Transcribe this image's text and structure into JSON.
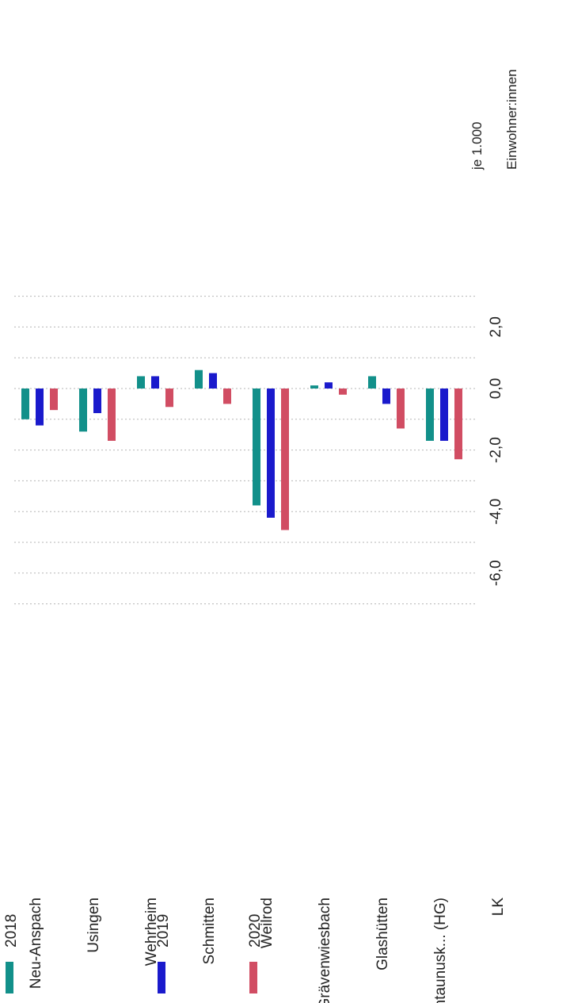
{
  "chart_data": {
    "type": "bar",
    "orientation": "horizontal",
    "categories": [
      "Neu-Anspach",
      "Usingen",
      "Wehrheim",
      "Schmitten",
      "Weilrod",
      "Grävenwiesbach",
      "Glashütten",
      "Hochtaunusk... (HG)",
      "LK"
    ],
    "series": [
      {
        "name": "2018",
        "color": "#12908a",
        "values": [
          -1.0,
          -1.4,
          0.4,
          0.6,
          -3.8,
          0.1,
          0.4,
          -1.7,
          null
        ]
      },
      {
        "name": "2019",
        "color": "#1a1acc",
        "values": [
          -1.2,
          -0.8,
          0.4,
          0.5,
          -4.2,
          0.2,
          -0.5,
          -1.7,
          null
        ]
      },
      {
        "name": "2020",
        "color": "#d14d63",
        "values": [
          -0.7,
          -1.7,
          -0.6,
          -0.5,
          -4.6,
          -0.2,
          -1.3,
          -2.3,
          null
        ]
      }
    ],
    "xlim": [
      -7.0,
      3.0
    ],
    "ticks": [
      {
        "value": -6.0,
        "label": "-6,0"
      },
      {
        "value": -4.0,
        "label": "-4,0"
      },
      {
        "value": -2.0,
        "label": "-2,0"
      },
      {
        "value": 0.0,
        "label": "0,0"
      },
      {
        "value": 2.0,
        "label": "2,0"
      }
    ],
    "gridlines": [
      -7,
      -6,
      -5,
      -4,
      -3,
      -2,
      -1,
      0,
      1,
      2,
      3
    ],
    "unit_label": [
      "je 1.000",
      "Einwohner:innen"
    ],
    "legend": {
      "position": "bottom",
      "entries": [
        "2018",
        "2019",
        "2020"
      ]
    },
    "grid": true
  }
}
